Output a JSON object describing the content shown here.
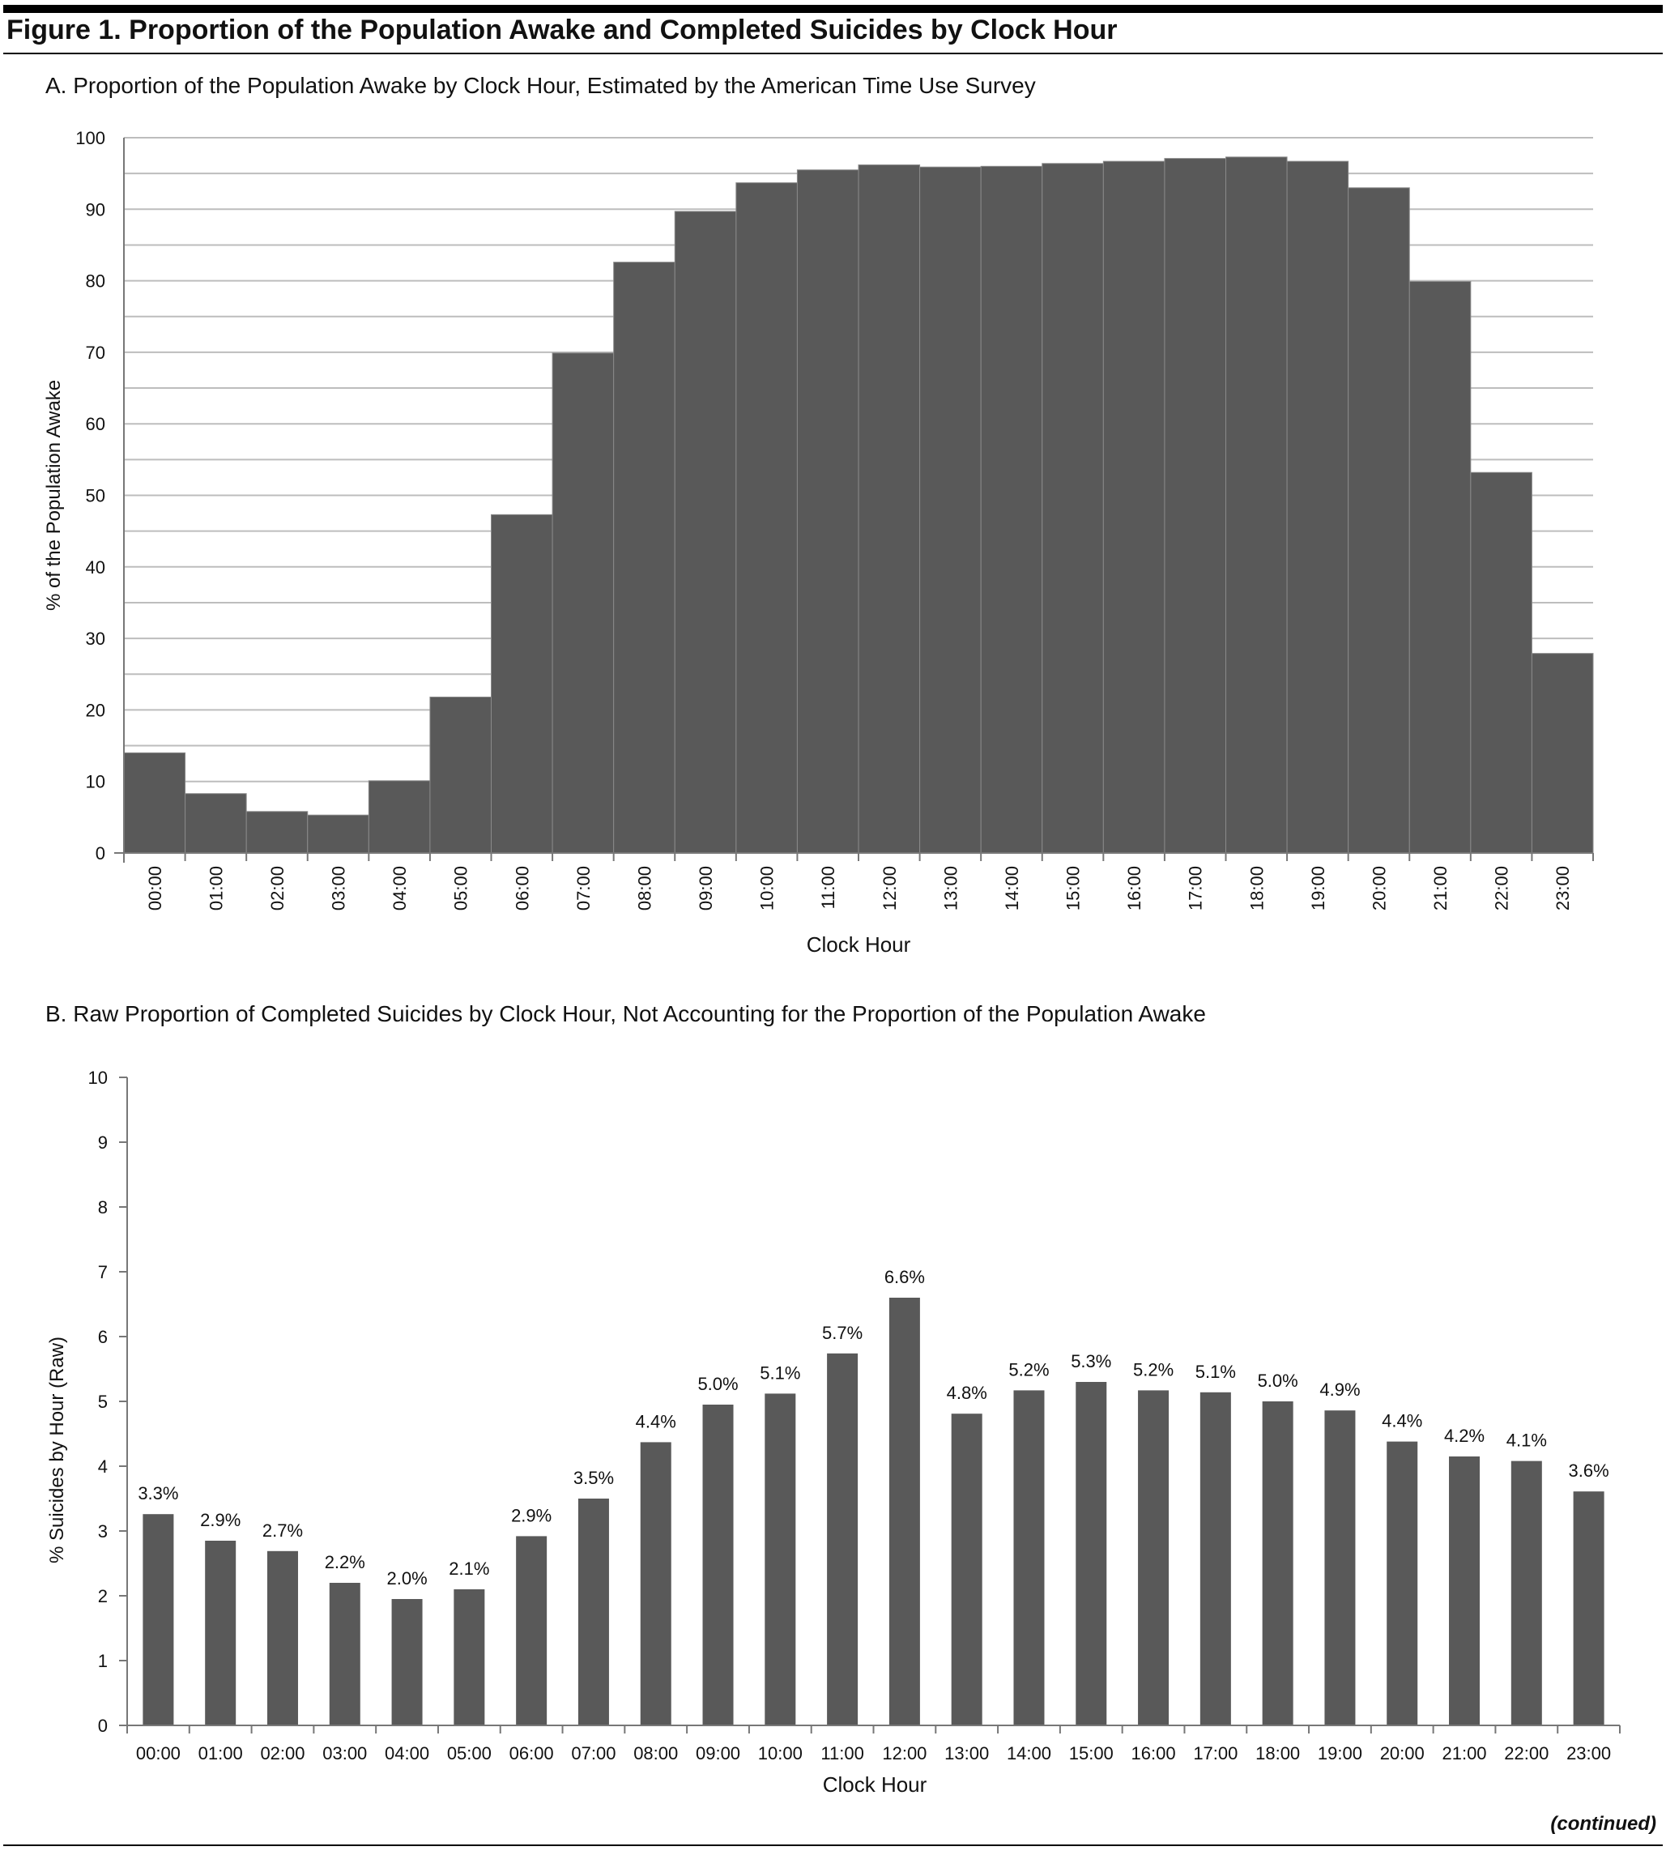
{
  "figure": {
    "title": "Figure 1. Proportion of the Population Awake and Completed Suicides by Clock Hour",
    "continued": "(continued)"
  },
  "panelA": {
    "title": "A. Proportion of the Population Awake by Clock Hour, Estimated by the American Time Use Survey"
  },
  "panelB": {
    "title": "B. Raw Proportion of Completed Suicides by Clock Hour, Not Accounting for the Proportion of the Population Awake"
  },
  "chart_data": [
    {
      "type": "bar",
      "title": "A. Proportion of the Population Awake by Clock Hour, Estimated by the American Time Use Survey",
      "xlabel": "Clock Hour",
      "ylabel": "% of the Population Awake",
      "ylim": [
        0,
        100
      ],
      "yticks": [
        0,
        10,
        20,
        30,
        40,
        50,
        60,
        70,
        80,
        90,
        100
      ],
      "grid": true,
      "bar_color": "#595959",
      "categories": [
        "00:00",
        "01:00",
        "02:00",
        "03:00",
        "04:00",
        "05:00",
        "06:00",
        "07:00",
        "08:00",
        "09:00",
        "10:00",
        "11:00",
        "12:00",
        "13:00",
        "14:00",
        "15:00",
        "16:00",
        "17:00",
        "18:00",
        "19:00",
        "20:00",
        "21:00",
        "22:00",
        "23:00"
      ],
      "values": [
        14.0,
        8.3,
        5.8,
        5.3,
        10.1,
        21.8,
        47.3,
        69.9,
        82.6,
        89.7,
        93.7,
        95.5,
        96.2,
        95.9,
        96.0,
        96.4,
        96.7,
        97.1,
        97.3,
        96.7,
        93.0,
        79.9,
        53.2,
        27.9
      ]
    },
    {
      "type": "bar",
      "title": "B. Raw Proportion of Completed Suicides by Clock Hour, Not Accounting for the Proportion of the Population Awake",
      "xlabel": "Clock Hour",
      "ylabel": "% Suicides by Hour (Raw)",
      "ylim": [
        0,
        10
      ],
      "yticks": [
        0,
        1,
        2,
        3,
        4,
        5,
        6,
        7,
        8,
        9,
        10
      ],
      "grid": false,
      "bar_color": "#595959",
      "categories": [
        "00:00",
        "01:00",
        "02:00",
        "03:00",
        "04:00",
        "05:00",
        "06:00",
        "07:00",
        "08:00",
        "09:00",
        "10:00",
        "11:00",
        "12:00",
        "13:00",
        "14:00",
        "15:00",
        "16:00",
        "17:00",
        "18:00",
        "19:00",
        "20:00",
        "21:00",
        "22:00",
        "23:00"
      ],
      "values": [
        3.26,
        2.85,
        2.69,
        2.2,
        1.95,
        2.1,
        2.92,
        3.5,
        4.37,
        4.95,
        5.12,
        5.74,
        6.6,
        4.81,
        5.17,
        5.3,
        5.17,
        5.14,
        5.0,
        4.86,
        4.38,
        4.15,
        4.08,
        3.61
      ],
      "data_labels": [
        "3.3%",
        "2.9%",
        "2.7%",
        "2.2%",
        "2.0%",
        "2.1%",
        "2.9%",
        "3.5%",
        "4.4%",
        "5.0%",
        "5.1%",
        "5.7%",
        "6.6%",
        "4.8%",
        "5.2%",
        "5.3%",
        "5.2%",
        "5.1%",
        "5.0%",
        "4.9%",
        "4.4%",
        "4.2%",
        "4.1%",
        "3.6%"
      ]
    }
  ]
}
